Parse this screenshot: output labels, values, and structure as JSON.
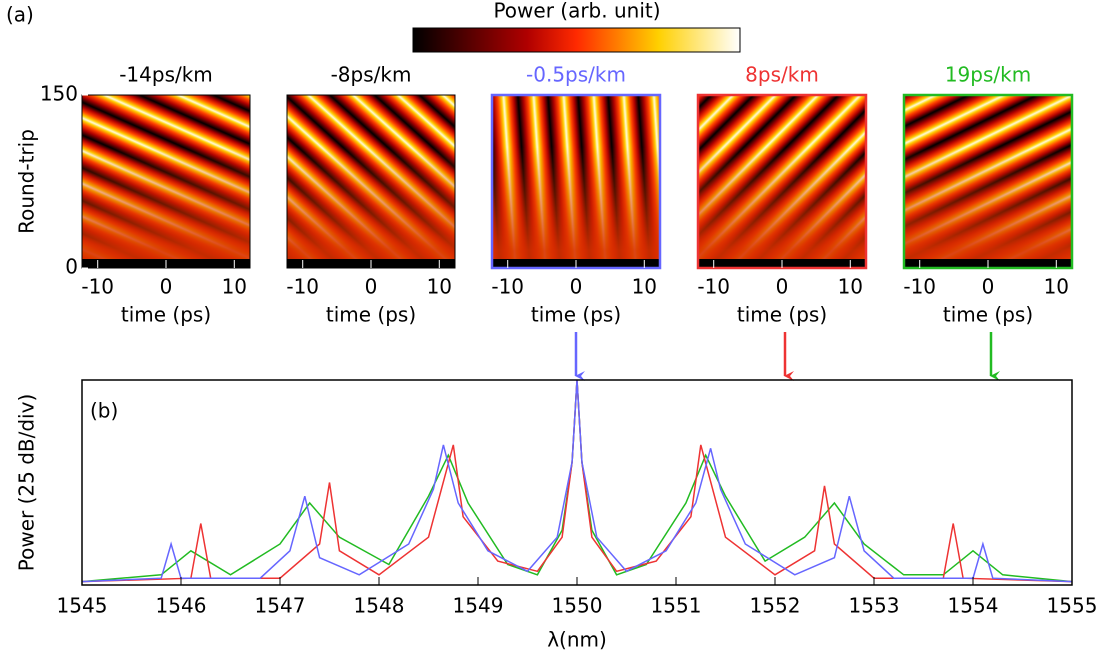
{
  "panel_labels": [
    "(a)",
    "(b)"
  ],
  "colorbar": {
    "label": "Power (arb. unit)"
  },
  "chart_data": [
    {
      "type": "heatmap",
      "title": "-14ps/km",
      "color": "#000000",
      "xlabel": "time (ps)",
      "ylabel": "Round-trip",
      "xlim": [
        -12.3,
        12.3
      ],
      "xticks": [
        -10,
        0,
        10
      ],
      "ylim": [
        0,
        150
      ],
      "yticks": [
        0,
        150
      ]
    },
    {
      "type": "heatmap",
      "title": "-8ps/km",
      "color": "#000000",
      "xlabel": "time (ps)",
      "xlim": [
        -12.3,
        12.3
      ],
      "xticks": [
        -10,
        0,
        10
      ],
      "ylim": [
        0,
        150
      ]
    },
    {
      "type": "heatmap",
      "title": "-0.5ps/km",
      "color": "#6666ff",
      "xlabel": "time (ps)",
      "xlim": [
        -12.3,
        12.3
      ],
      "xticks": [
        -10,
        0,
        10
      ],
      "ylim": [
        0,
        150
      ]
    },
    {
      "type": "heatmap",
      "title": "8ps/km",
      "color": "#ee3333",
      "xlabel": "time (ps)",
      "xlim": [
        -12.3,
        12.3
      ],
      "xticks": [
        -10,
        0,
        10
      ],
      "ylim": [
        0,
        150
      ]
    },
    {
      "type": "heatmap",
      "title": "19ps/km",
      "color": "#22bb22",
      "xlabel": "time (ps)",
      "xlim": [
        -12.3,
        12.3
      ],
      "xticks": [
        -10,
        0,
        10
      ],
      "ylim": [
        0,
        150
      ]
    },
    {
      "type": "line",
      "xlabel": "λ(nm)",
      "ylabel": "Power (25 dB/div)",
      "xlim": [
        1545,
        1555
      ],
      "xticks": [
        1545,
        1546,
        1547,
        1548,
        1549,
        1550,
        1551,
        1552,
        1553,
        1554,
        1555
      ],
      "ylim": [
        0,
        3
      ],
      "series": [
        {
          "color": "#22bb22",
          "x": [
            1545,
            1545.8,
            1546.1,
            1546.5,
            1547.0,
            1547.3,
            1547.6,
            1548.1,
            1548.5,
            1548.7,
            1548.9,
            1549.3,
            1549.6,
            1549.85,
            1549.95,
            1550,
            1550.05,
            1550.15,
            1550.4,
            1550.7,
            1551.1,
            1551.3,
            1551.5,
            1551.9,
            1552.3,
            1552.6,
            1552.9,
            1553.3,
            1553.7,
            1554.0,
            1554.3,
            1555
          ],
          "values": [
            0.05,
            0.15,
            0.5,
            0.15,
            0.6,
            1.2,
            0.7,
            0.3,
            1.3,
            1.9,
            1.2,
            0.3,
            0.15,
            0.8,
            1.8,
            3.0,
            1.8,
            0.8,
            0.15,
            0.3,
            1.2,
            1.9,
            1.3,
            0.35,
            0.7,
            1.2,
            0.6,
            0.15,
            0.15,
            0.5,
            0.15,
            0.05
          ]
        },
        {
          "color": "#ee3333",
          "x": [
            1545,
            1546.1,
            1546.2,
            1546.3,
            1547.0,
            1547.4,
            1547.5,
            1547.6,
            1548.0,
            1548.5,
            1548.75,
            1548.85,
            1549.2,
            1549.6,
            1549.85,
            1549.95,
            1550,
            1550.05,
            1550.15,
            1550.4,
            1550.8,
            1551.15,
            1551.25,
            1551.5,
            1552.0,
            1552.4,
            1552.5,
            1552.6,
            1553.0,
            1553.7,
            1553.8,
            1553.9,
            1555
          ],
          "values": [
            0.05,
            0.1,
            0.9,
            0.1,
            0.1,
            0.6,
            1.5,
            0.5,
            0.15,
            0.7,
            2.05,
            1.0,
            0.35,
            0.2,
            0.7,
            1.8,
            3.0,
            1.8,
            0.7,
            0.2,
            0.35,
            1.0,
            2.05,
            0.7,
            0.15,
            0.5,
            1.45,
            0.6,
            0.1,
            0.1,
            0.9,
            0.1,
            0.05
          ]
        },
        {
          "color": "#6666ff",
          "x": [
            1545,
            1545.8,
            1545.9,
            1546.0,
            1546.8,
            1547.1,
            1547.25,
            1547.4,
            1547.8,
            1548.3,
            1548.55,
            1548.65,
            1548.8,
            1549.1,
            1549.5,
            1549.8,
            1549.95,
            1550,
            1550.05,
            1550.2,
            1550.5,
            1550.9,
            1551.2,
            1551.35,
            1551.45,
            1551.7,
            1552.2,
            1552.6,
            1552.75,
            1552.9,
            1553.2,
            1554.0,
            1554.1,
            1554.2,
            1555
          ],
          "values": [
            0.05,
            0.1,
            0.6,
            0.1,
            0.1,
            0.5,
            1.3,
            0.4,
            0.15,
            0.6,
            1.4,
            2.05,
            1.2,
            0.5,
            0.2,
            0.7,
            1.8,
            3.0,
            1.8,
            0.7,
            0.2,
            0.5,
            1.2,
            2.0,
            1.4,
            0.6,
            0.15,
            0.4,
            1.3,
            0.5,
            0.1,
            0.1,
            0.6,
            0.1,
            0.05
          ]
        }
      ]
    }
  ]
}
